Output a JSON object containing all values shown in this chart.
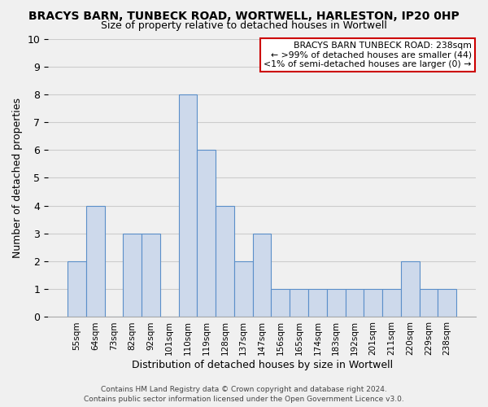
{
  "title": "BRACYS BARN, TUNBECK ROAD, WORTWELL, HARLESTON, IP20 0HP",
  "subtitle": "Size of property relative to detached houses in Wortwell",
  "xlabel": "Distribution of detached houses by size in Wortwell",
  "ylabel": "Number of detached properties",
  "categories": [
    "55sqm",
    "64sqm",
    "73sqm",
    "82sqm",
    "92sqm",
    "101sqm",
    "110sqm",
    "119sqm",
    "128sqm",
    "137sqm",
    "147sqm",
    "156sqm",
    "165sqm",
    "174sqm",
    "183sqm",
    "192sqm",
    "201sqm",
    "211sqm",
    "220sqm",
    "229sqm",
    "238sqm"
  ],
  "values": [
    2,
    4,
    0,
    3,
    3,
    0,
    8,
    6,
    4,
    2,
    3,
    1,
    1,
    1,
    1,
    1,
    1,
    1,
    2,
    1,
    1
  ],
  "bar_color": "#cdd9eb",
  "bar_edge_color": "#5b8fc9",
  "ylim": [
    0,
    10
  ],
  "yticks": [
    0,
    1,
    2,
    3,
    4,
    5,
    6,
    7,
    8,
    9,
    10
  ],
  "annotation_title": "BRACYS BARN TUNBECK ROAD: 238sqm",
  "annotation_line1": "← >99% of detached houses are smaller (44)",
  "annotation_line2": "<1% of semi-detached houses are larger (0) →",
  "annotation_box_facecolor": "#ffffff",
  "annotation_border_color": "#cc0000",
  "footer": "Contains HM Land Registry data © Crown copyright and database right 2024.\nContains public sector information licensed under the Open Government Licence v3.0.",
  "grid_color": "#cccccc",
  "background_color": "#f0f0f0",
  "title_fontsize": 10,
  "subtitle_fontsize": 9
}
